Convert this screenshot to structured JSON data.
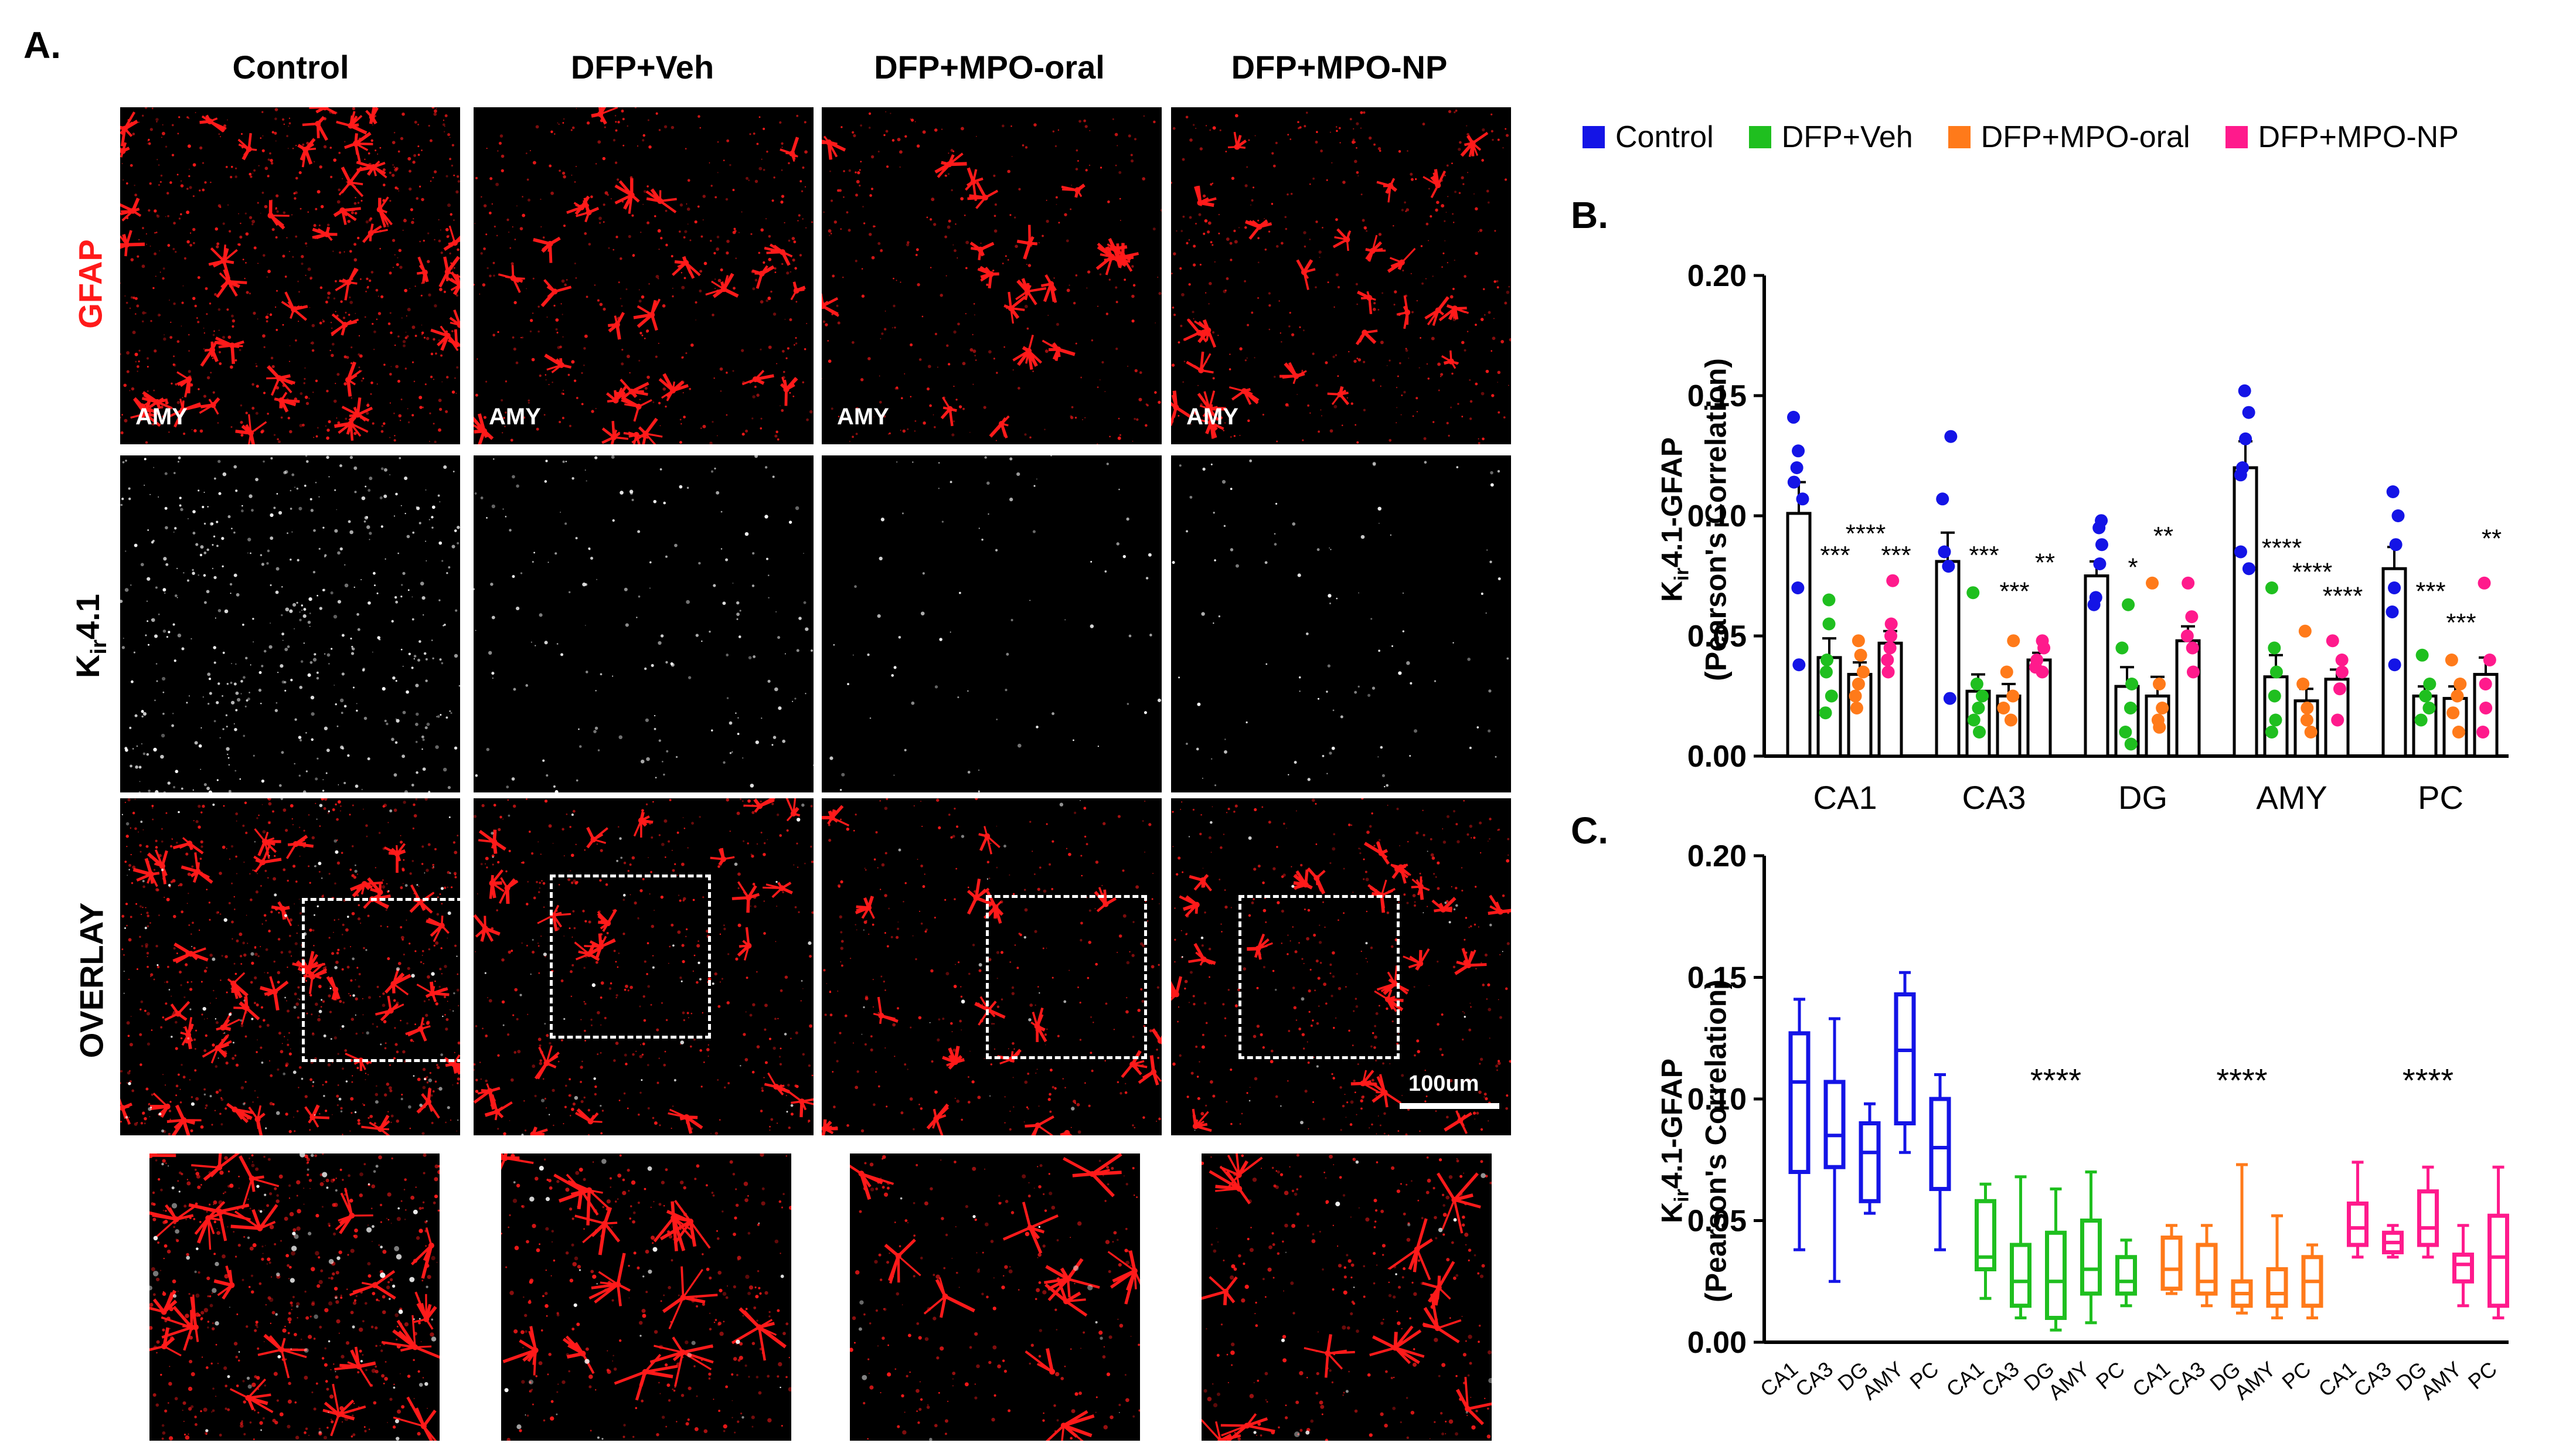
{
  "panelA": {
    "letter": "A.",
    "columns": [
      "Control",
      "DFP+Veh",
      "DFP+MPO-oral",
      "DFP+MPO-NP"
    ],
    "rows": {
      "gfap": "GFAP",
      "kir_main": "K",
      "kir_sub": "ir",
      "kir_tail": "4.1",
      "overlay": "OVERLAY"
    },
    "region_tag": "AMY",
    "scale_bar": "100um",
    "colors": {
      "gfap": "#ff1a1a",
      "kir": "#ffffff",
      "background": "#000000"
    }
  },
  "legend": {
    "items": [
      {
        "label": "Control",
        "color": "#1414e6"
      },
      {
        "label": "DFP+Veh",
        "color": "#1fbf1f"
      },
      {
        "label": "DFP+MPO-oral",
        "color": "#ff7a1a"
      },
      {
        "label": "DFP+MPO-NP",
        "color": "#ff1a8c"
      }
    ]
  },
  "panelB": {
    "letter": "B.",
    "ylabel_line1_pre": "K",
    "ylabel_line1_sub": "ir",
    "ylabel_line1_post": "4.1-GFAP",
    "ylabel_line2": "(Pearson's Correlation)",
    "yticks": [
      "0.00",
      "0.05",
      "0.10",
      "0.15",
      "0.20"
    ]
  },
  "panelC": {
    "letter": "C.",
    "ylabel_line1_pre": "K",
    "ylabel_line1_sub": "ir",
    "ylabel_line1_post": "4.1-GFAP",
    "ylabel_line2": "(Pearson's Correlation)",
    "yticks": [
      "0.00",
      "0.05",
      "0.10",
      "0.15",
      "0.20"
    ]
  },
  "chart_data": [
    {
      "type": "bar",
      "panel": "B",
      "title": "",
      "xlabel": "",
      "ylabel": "Kir4.1-GFAP (Pearson's Correlation)",
      "ylim": [
        0,
        0.2
      ],
      "categories": [
        "CA1",
        "CA3",
        "DG",
        "AMY",
        "PC"
      ],
      "series": [
        {
          "name": "Control",
          "values": [
            0.101,
            0.081,
            0.075,
            0.12,
            0.078
          ],
          "errors": [
            0.013,
            0.012,
            0.006,
            0.011,
            0.009
          ],
          "points": [
            [
              0.141,
              0.127,
              0.12,
              0.114,
              0.107,
              0.07,
              0.038
            ],
            [
              0.133,
              0.107,
              0.085,
              0.079,
              0.024
            ],
            [
              0.098,
              0.095,
              0.088,
              0.08,
              0.066,
              0.063
            ],
            [
              0.152,
              0.143,
              0.132,
              0.12,
              0.117,
              0.085,
              0.078
            ],
            [
              0.11,
              0.1,
              0.088,
              0.07,
              0.06,
              0.038
            ]
          ]
        },
        {
          "name": "DFP+Veh",
          "values": [
            0.041,
            0.027,
            0.029,
            0.033,
            0.025
          ],
          "errors": [
            0.008,
            0.007,
            0.008,
            0.009,
            0.004
          ],
          "points": [
            [
              0.065,
              0.055,
              0.04,
              0.035,
              0.025,
              0.018
            ],
            [
              0.068,
              0.03,
              0.025,
              0.02,
              0.015,
              0.01
            ],
            [
              0.063,
              0.045,
              0.03,
              0.02,
              0.01,
              0.005
            ],
            [
              0.07,
              0.045,
              0.035,
              0.025,
              0.015,
              0.01
            ],
            [
              0.042,
              0.03,
              0.025,
              0.02,
              0.015
            ]
          ]
        },
        {
          "name": "DFP+MPO-oral",
          "values": [
            0.034,
            0.025,
            0.025,
            0.023,
            0.024
          ],
          "errors": [
            0.005,
            0.005,
            0.008,
            0.005,
            0.005
          ],
          "points": [
            [
              0.048,
              0.042,
              0.035,
              0.03,
              0.025,
              0.02
            ],
            [
              0.048,
              0.035,
              0.025,
              0.02,
              0.015
            ],
            [
              0.072,
              0.03,
              0.02,
              0.015,
              0.012
            ],
            [
              0.052,
              0.03,
              0.02,
              0.015,
              0.01
            ],
            [
              0.04,
              0.03,
              0.025,
              0.018,
              0.01
            ]
          ]
        },
        {
          "name": "DFP+MPO-NP",
          "values": [
            0.047,
            0.04,
            0.048,
            0.032,
            0.034
          ],
          "errors": [
            0.005,
            0.003,
            0.006,
            0.004,
            0.007
          ],
          "points": [
            [
              0.073,
              0.055,
              0.05,
              0.045,
              0.04,
              0.035
            ],
            [
              0.048,
              0.045,
              0.04,
              0.037,
              0.035
            ],
            [
              0.072,
              0.058,
              0.05,
              0.045,
              0.035
            ],
            [
              0.048,
              0.04,
              0.035,
              0.028,
              0.015
            ],
            [
              0.072,
              0.04,
              0.03,
              0.02,
              0.01
            ]
          ]
        }
      ],
      "annotations": [
        {
          "text": "***",
          "category": "CA1",
          "series": "DFP+Veh",
          "y": 0.08
        },
        {
          "text": "****",
          "category": "CA1",
          "series": "DFP+MPO-oral",
          "y": 0.089
        },
        {
          "text": "***",
          "category": "CA1",
          "series": "DFP+MPO-NP",
          "y": 0.08
        },
        {
          "text": "***",
          "category": "CA3",
          "series": "DFP+Veh",
          "y": 0.08
        },
        {
          "text": "***",
          "category": "CA3",
          "series": "DFP+MPO-oral",
          "y": 0.065
        },
        {
          "text": "**",
          "category": "CA3",
          "series": "DFP+MPO-NP",
          "y": 0.077
        },
        {
          "text": "*",
          "category": "DG",
          "series": "DFP+Veh",
          "y": 0.075
        },
        {
          "text": "**",
          "category": "DG",
          "series": "DFP+MPO-oral",
          "y": 0.088
        },
        {
          "text": "****",
          "category": "AMY",
          "series": "DFP+Veh",
          "y": 0.083
        },
        {
          "text": "****",
          "category": "AMY",
          "series": "DFP+MPO-oral",
          "y": 0.073
        },
        {
          "text": "****",
          "category": "AMY",
          "series": "DFP+MPO-NP",
          "y": 0.063
        },
        {
          "text": "***",
          "category": "PC",
          "series": "DFP+Veh",
          "y": 0.065
        },
        {
          "text": "***",
          "category": "PC",
          "series": "DFP+MPO-oral",
          "y": 0.052
        },
        {
          "text": "**",
          "category": "PC",
          "series": "DFP+MPO-NP",
          "y": 0.087
        }
      ]
    },
    {
      "type": "box",
      "panel": "C",
      "title": "",
      "xlabel": "",
      "ylabel": "Kir4.1-GFAP (Pearson's Correlation)",
      "ylim": [
        0,
        0.2
      ],
      "categories": [
        "CA1",
        "CA3",
        "DG",
        "AMY",
        "PC"
      ],
      "series": [
        {
          "name": "Control",
          "boxes": [
            [
              0.038,
              0.07,
              0.107,
              0.127,
              0.141
            ],
            [
              0.025,
              0.072,
              0.085,
              0.107,
              0.133
            ],
            [
              0.053,
              0.058,
              0.078,
              0.09,
              0.098
            ],
            [
              0.078,
              0.09,
              0.12,
              0.143,
              0.152
            ],
            [
              0.038,
              0.063,
              0.08,
              0.1,
              0.11
            ]
          ]
        },
        {
          "name": "DFP+Veh",
          "boxes": [
            [
              0.018,
              0.03,
              0.035,
              0.058,
              0.065
            ],
            [
              0.01,
              0.015,
              0.025,
              0.04,
              0.068
            ],
            [
              0.005,
              0.01,
              0.025,
              0.045,
              0.063
            ],
            [
              0.008,
              0.02,
              0.03,
              0.05,
              0.07
            ],
            [
              0.015,
              0.02,
              0.025,
              0.035,
              0.042
            ]
          ]
        },
        {
          "name": "DFP+MPO-oral",
          "boxes": [
            [
              0.02,
              0.022,
              0.03,
              0.043,
              0.048
            ],
            [
              0.015,
              0.02,
              0.025,
              0.04,
              0.048
            ],
            [
              0.012,
              0.015,
              0.02,
              0.025,
              0.073
            ],
            [
              0.01,
              0.015,
              0.02,
              0.03,
              0.052
            ],
            [
              0.01,
              0.015,
              0.025,
              0.035,
              0.04
            ]
          ]
        },
        {
          "name": "DFP+MPO-NP",
          "boxes": [
            [
              0.035,
              0.04,
              0.047,
              0.057,
              0.074
            ],
            [
              0.035,
              0.037,
              0.041,
              0.045,
              0.048
            ],
            [
              0.035,
              0.04,
              0.047,
              0.062,
              0.072
            ],
            [
              0.015,
              0.025,
              0.032,
              0.036,
              0.048
            ],
            [
              0.01,
              0.015,
              0.035,
              0.052,
              0.072
            ]
          ]
        }
      ],
      "annotations": [
        {
          "text": "****",
          "series": "DFP+Veh",
          "y": 0.103
        },
        {
          "text": "****",
          "series": "DFP+MPO-oral",
          "y": 0.103
        },
        {
          "text": "****",
          "series": "DFP+MPO-NP",
          "y": 0.103
        }
      ]
    }
  ]
}
